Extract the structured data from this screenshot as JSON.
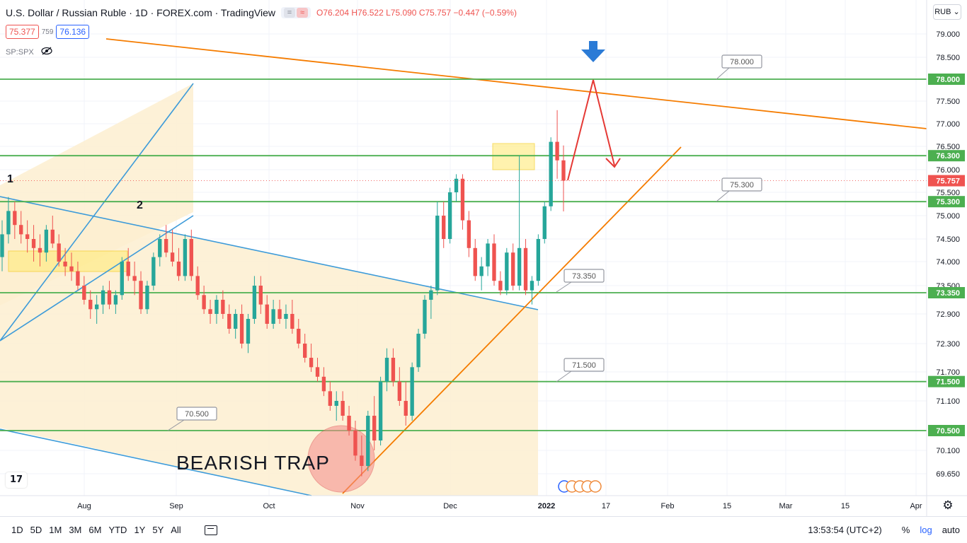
{
  "header": {
    "title": "U.S. Dollar / Russian Ruble · 1D · FOREX.com · TradingView",
    "ohlc_open": "O76.204",
    "ohlc_high": "H76.522",
    "ohlc_low": "L75.090",
    "ohlc_close": "C75.757",
    "change": "−0.447 (−0.59%)",
    "bid": "75.377",
    "spread": "759",
    "ask": "76.136",
    "indicator_label": "SP:SPX",
    "currency": "RUB",
    "currency_chevron": "⌄"
  },
  "colors": {
    "up": "#26a69a",
    "down": "#ef5350",
    "green_level": "#4caf50",
    "orange_line": "#f57c00",
    "blue_line": "#3d9bd9",
    "zone_fill": "#fdeed0",
    "yellow_box": "#ffeb7a",
    "trap_circle": "#f48a8a",
    "arrow_red": "#e53935",
    "arrow_blue": "#2b7bd6"
  },
  "chart_data": {
    "type": "candlestick",
    "title": "U.S. Dollar / Russian Ruble",
    "timeframe": "1D",
    "y_ticks": [
      69.65,
      70.1,
      71.1,
      71.7,
      72.3,
      72.9,
      73.5,
      74.0,
      74.5,
      75.0,
      75.5,
      76.0,
      76.5,
      77.0,
      77.5,
      78.5,
      79.0
    ],
    "x_ticks": [
      "Aug",
      "Sep",
      "Oct",
      "Nov",
      "Dec",
      "2022",
      "17",
      "Feb",
      "15",
      "Mar",
      "15",
      "Apr"
    ],
    "last_price": 75.757,
    "key_levels": [
      78.0,
      76.3,
      75.3,
      73.35,
      71.5,
      70.5
    ],
    "key_level_labels": [
      "78.000",
      "76.300",
      "75.300",
      "73.350",
      "71.500",
      "70.500"
    ],
    "callout_labels": [
      "78.000",
      "75.300",
      "73.350",
      "71.500",
      "70.500"
    ],
    "annotations": [
      "1",
      "2",
      "BEARISH TRAP"
    ],
    "last_price_label": "75.757",
    "candles": [
      [
        74.1,
        74.9,
        73.8,
        74.6
      ],
      [
        74.6,
        75.4,
        74.4,
        75.1
      ],
      [
        75.1,
        75.3,
        74.5,
        74.8
      ],
      [
        74.8,
        75.1,
        74.4,
        74.6
      ],
      [
        74.6,
        74.9,
        74.2,
        74.5
      ],
      [
        74.5,
        74.8,
        74.0,
        74.3
      ],
      [
        74.3,
        74.6,
        73.9,
        74.2
      ],
      [
        74.2,
        74.8,
        74.0,
        74.7
      ],
      [
        74.7,
        75.0,
        74.3,
        74.4
      ],
      [
        74.4,
        74.6,
        73.9,
        74.0
      ],
      [
        74.0,
        74.3,
        73.7,
        73.9
      ],
      [
        73.9,
        74.2,
        73.6,
        73.8
      ],
      [
        73.8,
        74.0,
        73.4,
        73.5
      ],
      [
        73.5,
        73.7,
        73.1,
        73.2
      ],
      [
        73.2,
        73.4,
        72.8,
        73.0
      ],
      [
        73.0,
        73.3,
        72.7,
        73.1
      ],
      [
        73.1,
        73.5,
        72.9,
        73.4
      ],
      [
        73.4,
        73.6,
        73.0,
        73.1
      ],
      [
        73.1,
        73.4,
        72.9,
        73.3
      ],
      [
        73.3,
        74.1,
        73.2,
        74.0
      ],
      [
        74.0,
        74.3,
        73.6,
        73.7
      ],
      [
        73.7,
        74.0,
        73.3,
        73.6
      ],
      [
        73.6,
        73.8,
        72.9,
        73.0
      ],
      [
        73.0,
        73.6,
        72.9,
        73.5
      ],
      [
        73.5,
        74.2,
        73.4,
        74.1
      ],
      [
        74.1,
        74.6,
        73.9,
        74.5
      ],
      [
        74.5,
        74.8,
        74.1,
        74.2
      ],
      [
        74.2,
        74.7,
        73.9,
        74.0
      ],
      [
        74.0,
        74.3,
        73.6,
        73.7
      ],
      [
        73.7,
        74.6,
        73.6,
        74.5
      ],
      [
        74.5,
        74.7,
        73.6,
        73.7
      ],
      [
        73.7,
        73.9,
        73.2,
        73.3
      ],
      [
        73.3,
        73.5,
        72.9,
        73.0
      ],
      [
        73.0,
        73.2,
        72.7,
        72.9
      ],
      [
        72.9,
        73.3,
        72.7,
        73.2
      ],
      [
        73.2,
        73.4,
        72.8,
        72.9
      ],
      [
        72.9,
        73.1,
        72.5,
        72.6
      ],
      [
        72.6,
        73.0,
        72.4,
        72.9
      ],
      [
        72.9,
        73.1,
        72.2,
        72.3
      ],
      [
        72.3,
        72.9,
        72.1,
        72.8
      ],
      [
        72.8,
        73.7,
        72.7,
        73.5
      ],
      [
        73.5,
        73.7,
        72.9,
        73.1
      ],
      [
        73.1,
        73.3,
        72.6,
        72.7
      ],
      [
        72.7,
        73.2,
        72.6,
        73.0
      ],
      [
        73.0,
        73.2,
        72.7,
        72.8
      ],
      [
        72.8,
        73.1,
        72.6,
        72.9
      ],
      [
        72.9,
        73.2,
        72.5,
        72.6
      ],
      [
        72.6,
        72.8,
        72.2,
        72.3
      ],
      [
        72.3,
        72.5,
        71.9,
        72.0
      ],
      [
        72.0,
        72.3,
        71.7,
        71.8
      ],
      [
        71.8,
        72.0,
        71.5,
        71.6
      ],
      [
        71.6,
        71.8,
        71.2,
        71.3
      ],
      [
        71.3,
        71.5,
        70.9,
        71.0
      ],
      [
        71.0,
        71.3,
        70.7,
        71.1
      ],
      [
        71.1,
        71.3,
        70.7,
        70.8
      ],
      [
        70.8,
        71.0,
        70.4,
        70.5
      ],
      [
        70.5,
        70.7,
        69.9,
        70.0
      ],
      [
        70.0,
        70.4,
        69.6,
        69.8
      ],
      [
        69.8,
        70.9,
        69.7,
        70.8
      ],
      [
        70.8,
        71.2,
        70.1,
        70.3
      ],
      [
        70.3,
        71.6,
        70.2,
        71.5
      ],
      [
        71.5,
        72.2,
        71.3,
        72.0
      ],
      [
        72.0,
        72.2,
        71.4,
        71.5
      ],
      [
        71.5,
        71.8,
        71.0,
        71.1
      ],
      [
        71.1,
        71.5,
        70.6,
        70.8
      ],
      [
        70.8,
        71.9,
        70.7,
        71.8
      ],
      [
        71.8,
        72.6,
        71.7,
        72.5
      ],
      [
        72.5,
        73.3,
        72.4,
        73.2
      ],
      [
        73.2,
        73.5,
        72.8,
        73.4
      ],
      [
        73.4,
        75.3,
        73.3,
        75.0
      ],
      [
        75.0,
        75.3,
        74.3,
        74.5
      ],
      [
        74.5,
        75.6,
        74.4,
        75.5
      ],
      [
        75.5,
        75.9,
        75.3,
        75.8
      ],
      [
        75.8,
        75.9,
        74.7,
        74.9
      ],
      [
        74.9,
        75.1,
        74.1,
        74.3
      ],
      [
        74.3,
        74.5,
        73.6,
        73.7
      ],
      [
        73.7,
        74.1,
        73.4,
        73.9
      ],
      [
        73.9,
        74.5,
        73.7,
        74.4
      ],
      [
        74.4,
        74.6,
        73.5,
        73.6
      ],
      [
        73.6,
        73.8,
        73.3,
        73.4
      ],
      [
        73.4,
        74.3,
        73.3,
        74.2
      ],
      [
        74.2,
        74.4,
        73.4,
        73.5
      ],
      [
        73.5,
        76.3,
        73.4,
        74.3
      ],
      [
        74.3,
        74.5,
        73.3,
        73.4
      ],
      [
        73.4,
        73.7,
        73.1,
        73.6
      ],
      [
        73.6,
        74.6,
        73.5,
        74.5
      ],
      [
        74.5,
        75.3,
        74.4,
        75.2
      ],
      [
        75.2,
        76.7,
        75.1,
        76.6
      ],
      [
        76.6,
        77.3,
        75.8,
        76.2
      ],
      [
        76.2,
        76.52,
        75.09,
        75.757
      ]
    ]
  },
  "bottom_bar": {
    "ranges": [
      "1D",
      "5D",
      "1M",
      "3M",
      "6M",
      "YTD",
      "1Y",
      "5Y",
      "All"
    ],
    "clock": "13:53:54 (UTC+2)",
    "percent": "%",
    "log": "log",
    "auto": "auto",
    "settings_glyph": "⚙",
    "logo": "17"
  }
}
